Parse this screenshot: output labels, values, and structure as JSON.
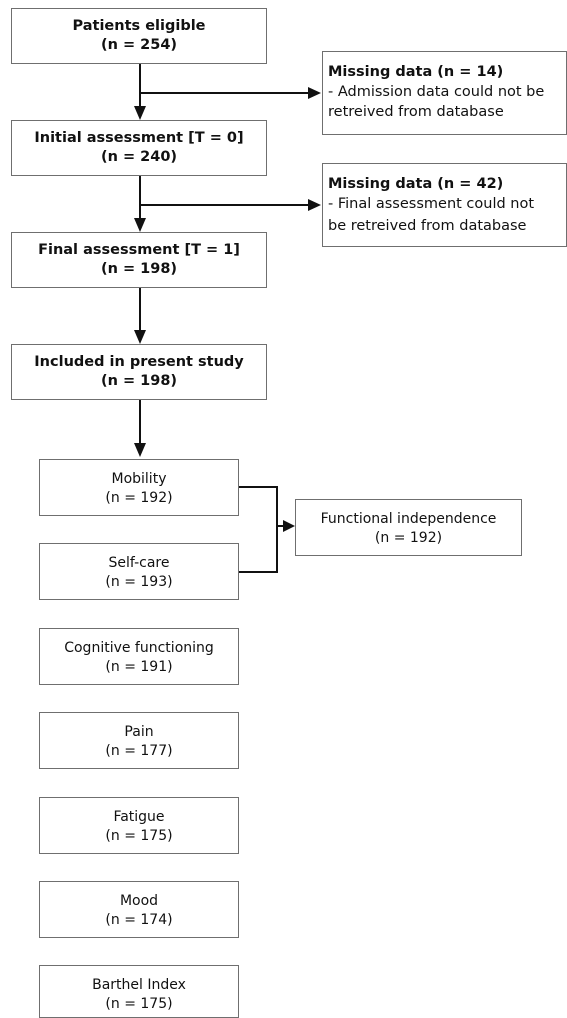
{
  "flowchart": {
    "main_steps": [
      {
        "title": "Patients eligible",
        "count": "(n = 254)"
      },
      {
        "title": "Initial assessment [T = 0]",
        "count": "(n = 240)"
      },
      {
        "title": "Final assessment [T = 1]",
        "count": "(n = 198)"
      },
      {
        "title": "Included in present study",
        "count": "(n = 198)"
      }
    ],
    "missing_notes": [
      {
        "title": "Missing data (n = 14)",
        "line1": "- Admission data could not be",
        "line2": "retreived from database"
      },
      {
        "title": "Missing data (n = 42)",
        "line1": "- Final assessment could not",
        "line2": "be retreived from database"
      }
    ],
    "outcomes": [
      {
        "title": "Mobility",
        "count": "(n = 192)"
      },
      {
        "title": "Self-care",
        "count": "(n = 193)"
      },
      {
        "title": "Cognitive functioning",
        "count": "(n = 191)"
      },
      {
        "title": "Pain",
        "count": "(n = 177)"
      },
      {
        "title": "Fatigue",
        "count": "(n = 175)"
      },
      {
        "title": "Mood",
        "count": "(n = 174)"
      },
      {
        "title": "Barthel Index",
        "count": "(n = 175)"
      }
    ],
    "combined_outcome": {
      "title": "Functional independence",
      "count": "(n = 192)"
    }
  }
}
